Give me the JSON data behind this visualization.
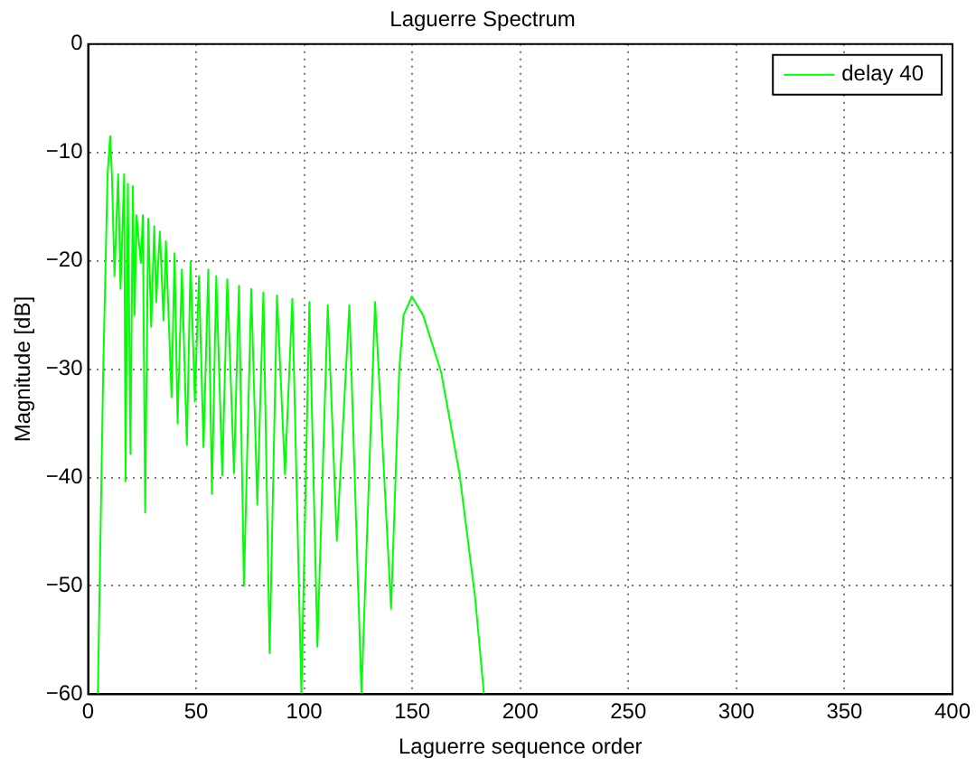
{
  "chart_data": {
    "type": "line",
    "title": "Laguerre Spectrum",
    "xlabel": "Laguerre sequence order",
    "ylabel": "Magnitude [dB]",
    "xlim": [
      0,
      400
    ],
    "xticks": [
      0,
      50,
      100,
      150,
      200,
      250,
      300,
      350,
      400
    ],
    "ylim": [
      -60,
      0
    ],
    "yticks": [
      -60,
      -50,
      -40,
      -30,
      -20,
      -10,
      0
    ],
    "grid": true,
    "legend": "top right",
    "marker": "none",
    "line_style": "solid",
    "series": [
      {
        "name": "delay 40",
        "color": "#00ff00",
        "x": [
          4.5,
          7,
          9,
          10.2,
          11,
          12.2,
          13.9,
          15,
          16.7,
          17.3,
          18.4,
          19.6,
          20.7,
          21.5,
          22.4,
          24.4,
          25.3,
          26.4,
          27.8,
          29.2,
          30.6,
          31.5,
          33.2,
          34.9,
          36,
          38.6,
          40,
          41.4,
          43.4,
          45.7,
          47.4,
          49.4,
          51.3,
          53.4,
          55.6,
          57.3,
          59.3,
          62.1,
          64.4,
          67.5,
          69.8,
          72.1,
          75.5,
          78.3,
          81.1,
          84,
          87.4,
          91.1,
          94.5,
          98.7,
          102.4,
          106.1,
          110.9,
          115.1,
          120.9,
          126.5,
          132.8,
          140.2,
          144,
          146,
          149.8,
          155,
          163.4,
          171.9,
          179,
          183.2
        ],
        "values": [
          -60,
          -30,
          -12,
          -8.5,
          -12,
          -21.4,
          -12,
          -22.6,
          -12,
          -40.3,
          -12.9,
          -37.8,
          -13.1,
          -25,
          -15.8,
          -20.2,
          -15.8,
          -43.2,
          -16.1,
          -26.1,
          -16.8,
          -23.8,
          -17.3,
          -25.5,
          -18.2,
          -32.6,
          -19.3,
          -35,
          -20.8,
          -37,
          -20.1,
          -33,
          -21.4,
          -37.2,
          -20.8,
          -41.5,
          -21.4,
          -39.8,
          -21.7,
          -39.6,
          -22.3,
          -50,
          -22.6,
          -42.5,
          -22.9,
          -56.2,
          -23.2,
          -39.7,
          -23.5,
          -60,
          -23.8,
          -55.6,
          -24.1,
          -45.8,
          -24.1,
          -60,
          -23.8,
          -52.1,
          -30,
          -25,
          -23.3,
          -25,
          -30.3,
          -39.7,
          -50.9,
          -60
        ]
      }
    ]
  }
}
